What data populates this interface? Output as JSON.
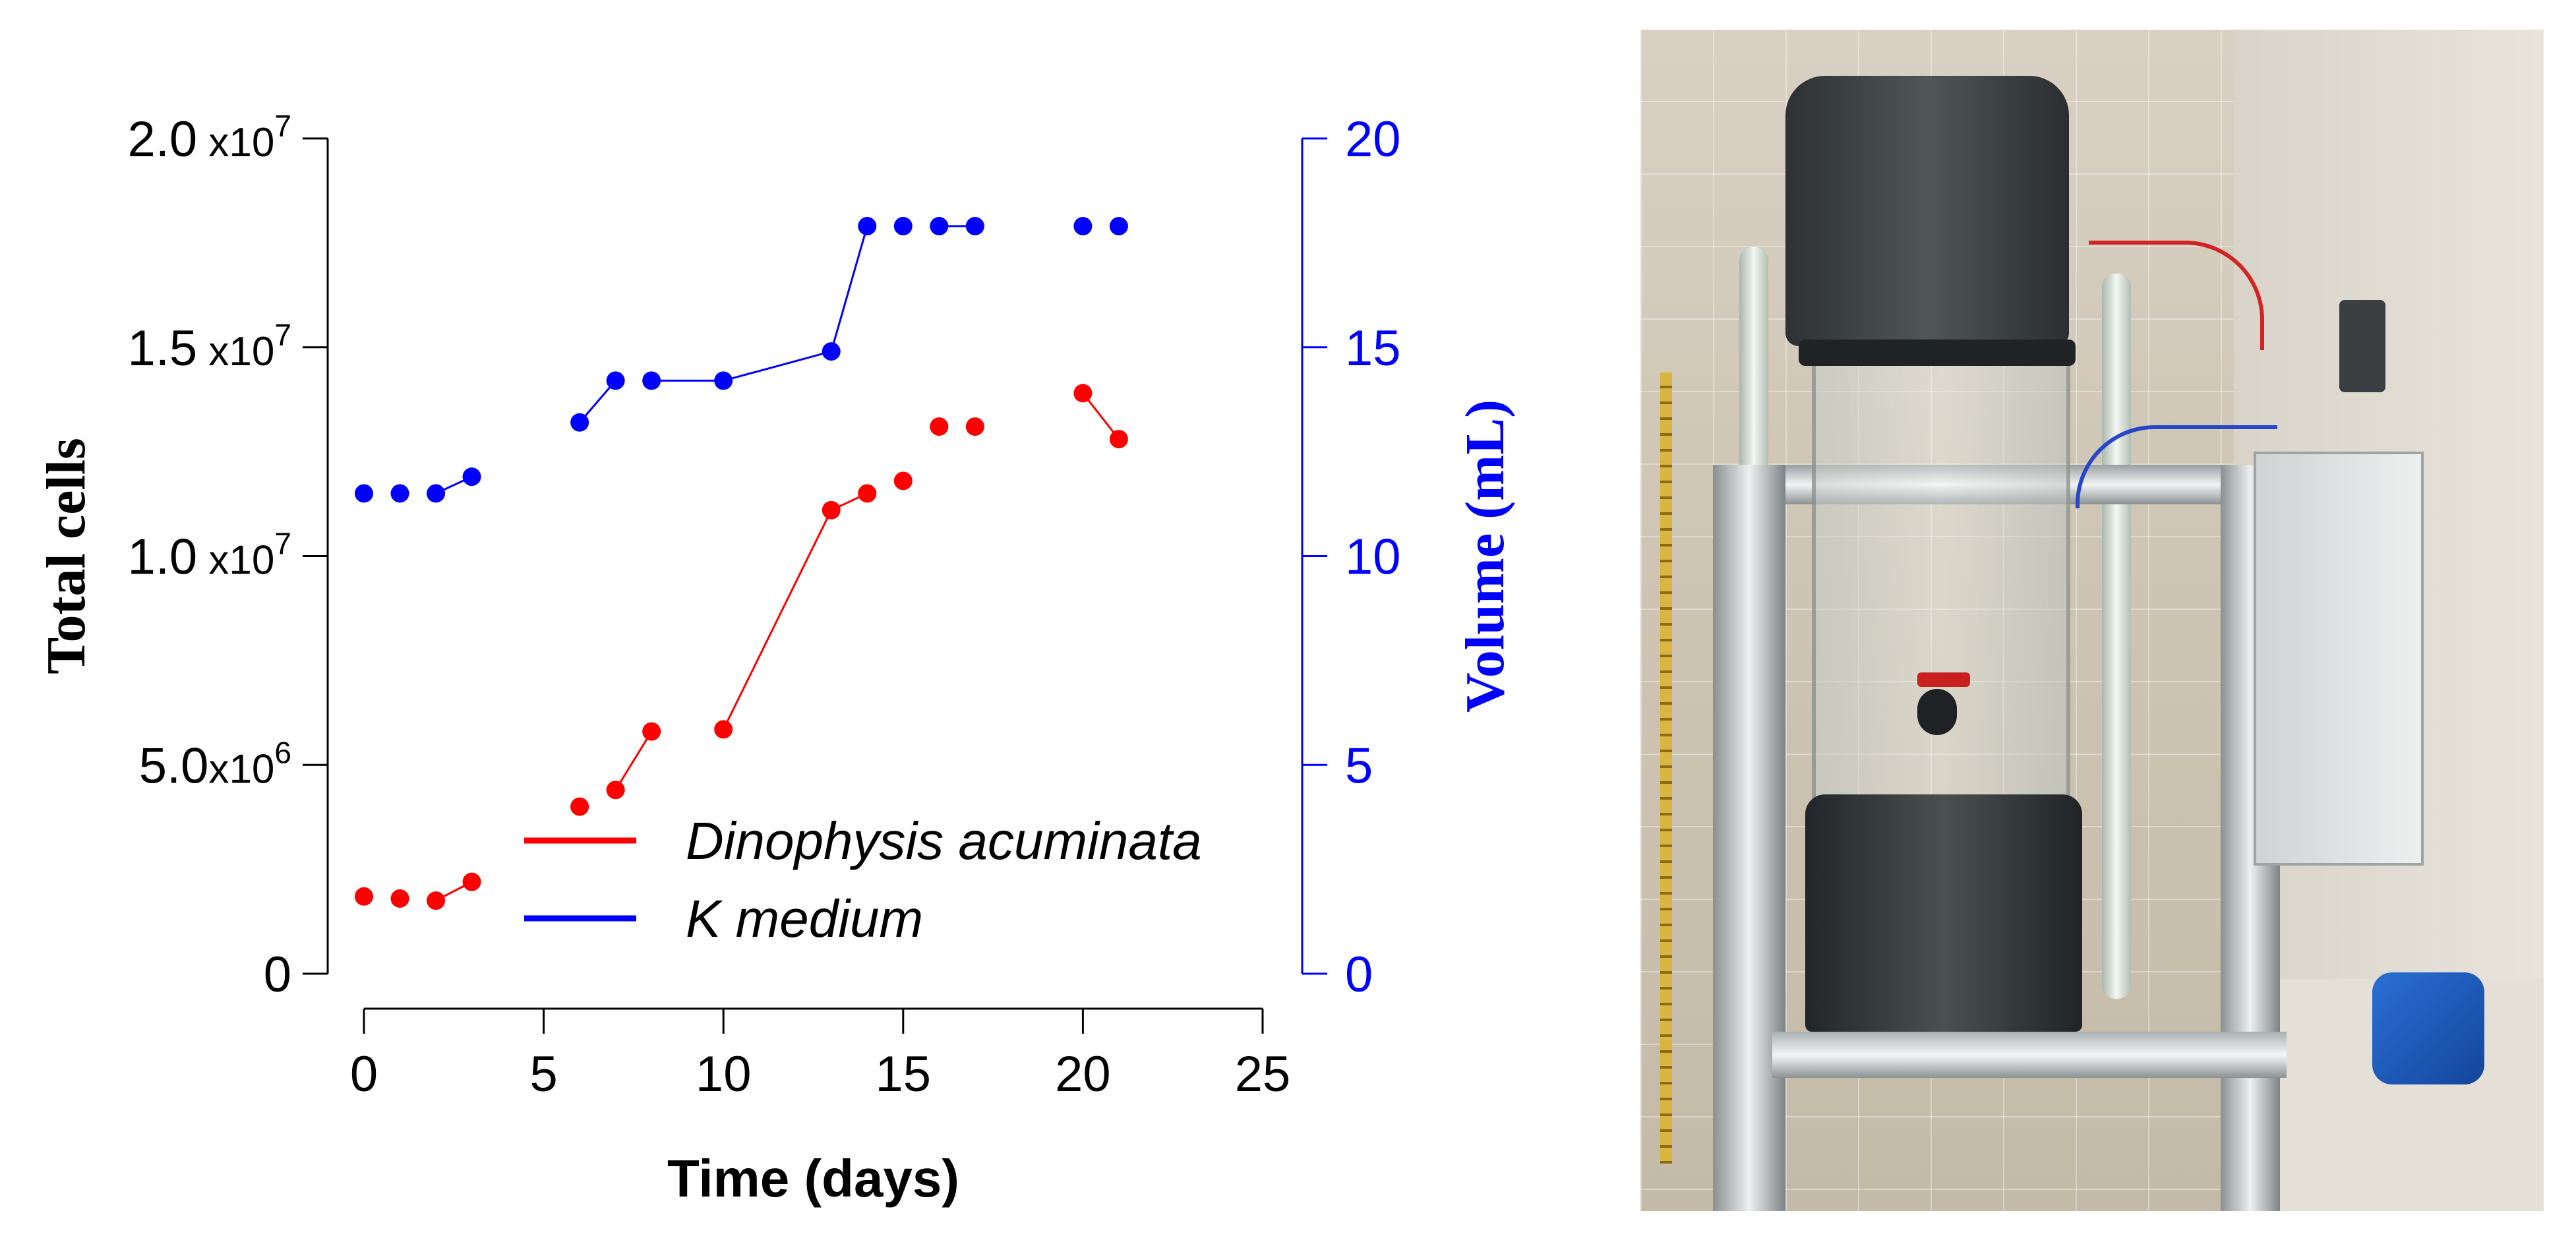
{
  "chart_data": {
    "type": "line",
    "xlabel": "Time (days)",
    "ylabel": "Total cells",
    "y2label": "Volume (mL)",
    "xlim": [
      0,
      25
    ],
    "ylim": [
      0,
      20000000
    ],
    "y2lim": [
      0,
      20
    ],
    "x_ticks": [
      "0",
      "5",
      "10",
      "15",
      "20",
      "25"
    ],
    "y_ticks": [
      {
        "value": 0,
        "mantissa": "0",
        "sep": "",
        "exp": ""
      },
      {
        "value": 5000000,
        "mantissa": "5.0",
        "sep": "x10",
        "exp": "6"
      },
      {
        "value": 10000000,
        "mantissa": "1.0",
        "sep": " x10",
        "exp": "7"
      },
      {
        "value": 15000000,
        "mantissa": "1.5",
        "sep": " x10",
        "exp": "7"
      },
      {
        "value": 20000000,
        "mantissa": "2.0",
        "sep": " x10",
        "exp": "7"
      }
    ],
    "y2_ticks": [
      "0",
      "5",
      "10",
      "15",
      "20"
    ],
    "grid": false,
    "legend_position": "bottom-center",
    "series": [
      {
        "name": "Dinophysis acuminata",
        "axis": "left",
        "color": "#ff0000",
        "x": [
          0,
          1,
          2,
          3,
          6,
          7,
          8,
          10,
          13,
          14,
          15,
          16,
          17,
          20,
          21
        ],
        "y": [
          1850000,
          1800000,
          1750000,
          2200000,
          4000000,
          4400000,
          5800000,
          5850000,
          11100000,
          11500000,
          11800000,
          13100000,
          13100000,
          13900000,
          12800000
        ],
        "connected": [
          false,
          false,
          true,
          false,
          false,
          true,
          false,
          true,
          true,
          false,
          false,
          false,
          false,
          true
        ]
      },
      {
        "name": "K medium",
        "axis": "right",
        "color": "#0000ff",
        "x": [
          0,
          1,
          2,
          3,
          6,
          7,
          8,
          10,
          13,
          14,
          15,
          16,
          17,
          20,
          21
        ],
        "y": [
          11.5,
          11.5,
          11.5,
          11.9,
          13.2,
          14.2,
          14.2,
          14.2,
          14.9,
          17.9,
          17.9,
          17.9,
          17.9,
          17.9,
          17.9
        ],
        "connected": [
          false,
          false,
          true,
          false,
          true,
          false,
          true,
          true,
          true,
          false,
          false,
          true,
          false,
          false
        ]
      }
    ]
  },
  "photo": {
    "description_icon": "culture-vessel-photo"
  }
}
